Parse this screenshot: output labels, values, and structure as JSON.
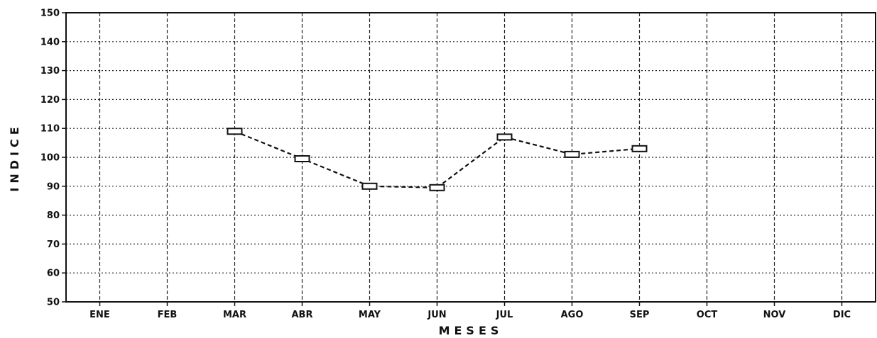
{
  "chart_data": {
    "type": "line",
    "xlabel": "MESES",
    "ylabel": "INDICE",
    "categories": [
      "ENE",
      "FEB",
      "MAR",
      "ABR",
      "MAY",
      "JUN",
      "JUL",
      "AGO",
      "SEP",
      "OCT",
      "NOV",
      "DIC"
    ],
    "ylim": [
      50,
      150
    ],
    "yticks": [
      50,
      60,
      70,
      80,
      90,
      100,
      110,
      120,
      130,
      140,
      150
    ],
    "grid": true,
    "series": [
      {
        "values": [
          null,
          null,
          109,
          99.5,
          90,
          89.5,
          107,
          101,
          103,
          null,
          null,
          null
        ],
        "color": "#111111",
        "line_style": "dashed",
        "marker": "square"
      }
    ]
  }
}
